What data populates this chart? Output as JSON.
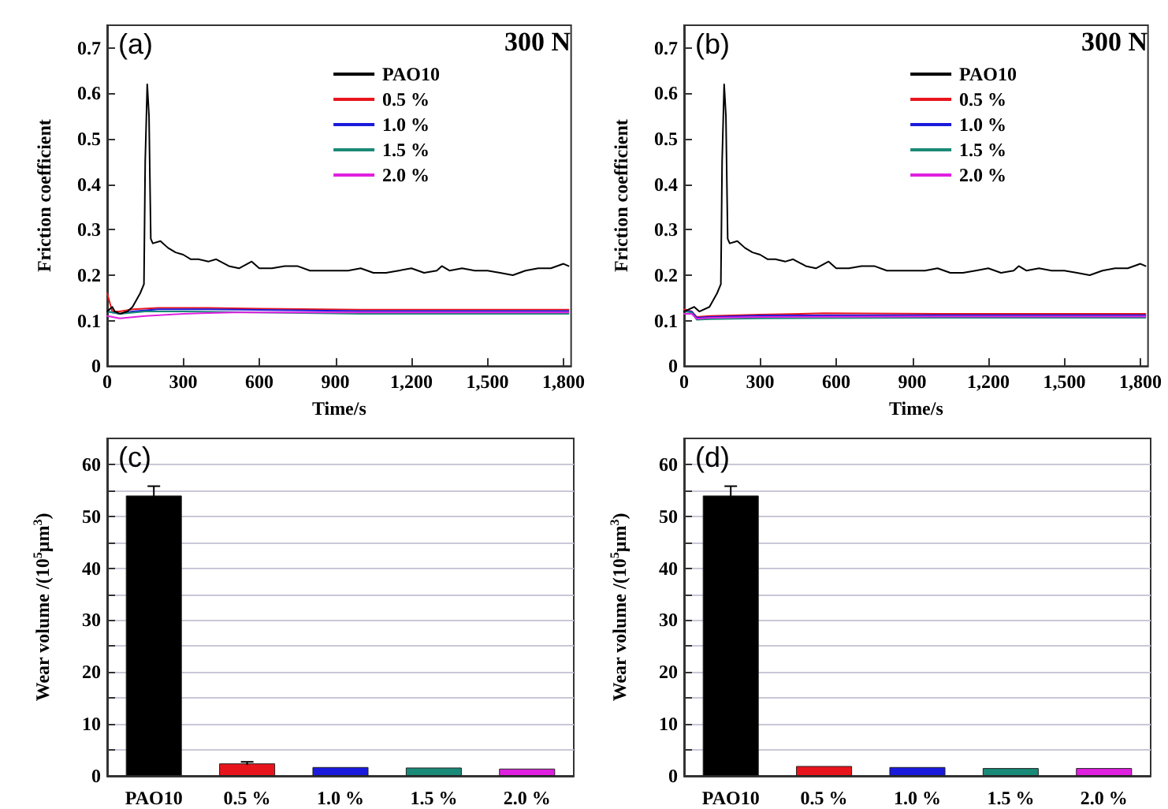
{
  "chart_data": [
    {
      "type": "line",
      "title": "(a)",
      "annotations": [
        "300 N"
      ],
      "xlabel": "Time/s",
      "ylabel": "Friction coefficient",
      "xlim": [
        0,
        1830
      ],
      "ylim": [
        0,
        0.75
      ],
      "xticks": [
        0,
        300,
        600,
        900,
        {
          "value": 1200,
          "label": "1,200"
        },
        {
          "value": 1500,
          "label": "1,500"
        },
        {
          "value": 1800,
          "label": "1,800"
        }
      ],
      "yticks": [
        0.0,
        0.1,
        0.2,
        0.3,
        0.4,
        0.5,
        0.6,
        0.7
      ],
      "legend": "top right",
      "grid": false,
      "marker": "none",
      "line_style": "solid",
      "series": [
        {
          "name": "PAO10",
          "color": "#000000",
          "x": [
            0,
            20,
            30,
            50,
            80,
            100,
            130,
            145,
            150,
            158,
            165,
            172,
            180,
            210,
            240,
            270,
            300,
            330,
            360,
            400,
            430,
            480,
            520,
            570,
            600,
            650,
            700,
            750,
            800,
            850,
            900,
            950,
            1000,
            1050,
            1100,
            1150,
            1200,
            1250,
            1300,
            1320,
            1350,
            1400,
            1450,
            1500,
            1550,
            1600,
            1650,
            1700,
            1750,
            1800,
            1820
          ],
          "values": [
            0.12,
            0.13,
            0.12,
            0.115,
            0.12,
            0.13,
            0.16,
            0.18,
            0.45,
            0.62,
            0.55,
            0.28,
            0.27,
            0.275,
            0.26,
            0.25,
            0.245,
            0.235,
            0.235,
            0.23,
            0.235,
            0.22,
            0.215,
            0.23,
            0.215,
            0.215,
            0.22,
            0.22,
            0.21,
            0.21,
            0.21,
            0.21,
            0.215,
            0.205,
            0.205,
            0.21,
            0.215,
            0.205,
            0.21,
            0.22,
            0.21,
            0.215,
            0.21,
            0.21,
            0.205,
            0.2,
            0.21,
            0.215,
            0.215,
            0.225,
            0.22
          ]
        },
        {
          "name": "0.5 %",
          "color": "#e8141c",
          "x": [
            0,
            20,
            50,
            100,
            200,
            400,
            600,
            1000,
            1820
          ],
          "values": [
            0.16,
            0.12,
            0.12,
            0.125,
            0.128,
            0.128,
            0.126,
            0.124,
            0.124
          ]
        },
        {
          "name": "1.0 %",
          "color": "#1a1adc",
          "x": [
            0,
            50,
            100,
            200,
            400,
            1000,
            1820
          ],
          "values": [
            0.12,
            0.115,
            0.12,
            0.125,
            0.125,
            0.121,
            0.121
          ]
        },
        {
          "name": "1.5 %",
          "color": "#1a8a78",
          "x": [
            0,
            50,
            150,
            300,
            1000,
            1820
          ],
          "values": [
            0.12,
            0.115,
            0.12,
            0.12,
            0.115,
            0.115
          ]
        },
        {
          "name": "2.0 %",
          "color": "#e020e0",
          "x": [
            0,
            50,
            150,
            300,
            500,
            1000,
            1820
          ],
          "values": [
            0.11,
            0.105,
            0.11,
            0.115,
            0.118,
            0.118,
            0.118
          ]
        }
      ]
    },
    {
      "type": "line",
      "title": "(b)",
      "annotations": [
        "300 N"
      ],
      "xlabel": "Time/s",
      "ylabel": "Friction coefficient",
      "xlim": [
        0,
        1830
      ],
      "ylim": [
        0,
        0.75
      ],
      "xticks": [
        0,
        300,
        600,
        900,
        {
          "value": 1200,
          "label": "1,200"
        },
        {
          "value": 1500,
          "label": "1,500"
        },
        {
          "value": 1800,
          "label": "1,800"
        }
      ],
      "yticks": [
        0.0,
        0.1,
        0.2,
        0.3,
        0.4,
        0.5,
        0.6,
        0.7
      ],
      "legend": "top right",
      "grid": false,
      "marker": "none",
      "line_style": "solid",
      "series": [
        {
          "name": "PAO10",
          "color": "#000000",
          "x": [
            0,
            20,
            40,
            60,
            100,
            130,
            145,
            150,
            158,
            165,
            172,
            180,
            210,
            240,
            270,
            300,
            330,
            360,
            400,
            430,
            480,
            520,
            570,
            600,
            650,
            700,
            750,
            800,
            850,
            900,
            950,
            1000,
            1050,
            1100,
            1150,
            1200,
            1250,
            1300,
            1320,
            1350,
            1400,
            1450,
            1500,
            1550,
            1600,
            1650,
            1700,
            1750,
            1800,
            1820
          ],
          "values": [
            0.12,
            0.125,
            0.13,
            0.12,
            0.13,
            0.16,
            0.18,
            0.45,
            0.62,
            0.55,
            0.28,
            0.27,
            0.275,
            0.26,
            0.25,
            0.245,
            0.235,
            0.235,
            0.23,
            0.235,
            0.22,
            0.215,
            0.23,
            0.215,
            0.215,
            0.22,
            0.22,
            0.21,
            0.21,
            0.21,
            0.21,
            0.215,
            0.205,
            0.205,
            0.21,
            0.215,
            0.205,
            0.21,
            0.22,
            0.21,
            0.215,
            0.21,
            0.21,
            0.205,
            0.2,
            0.21,
            0.215,
            0.215,
            0.225,
            0.22
          ]
        },
        {
          "name": "0.5 %",
          "color": "#e8141c",
          "x": [
            0,
            30,
            50,
            100,
            300,
            550,
            1000,
            1820
          ],
          "values": [
            0.125,
            0.12,
            0.108,
            0.11,
            0.113,
            0.116,
            0.115,
            0.115
          ]
        },
        {
          "name": "1.0 %",
          "color": "#1a1adc",
          "x": [
            0,
            30,
            50,
            100,
            300,
            1000,
            1820
          ],
          "values": [
            0.12,
            0.12,
            0.106,
            0.108,
            0.111,
            0.112,
            0.112
          ]
        },
        {
          "name": "1.5 %",
          "color": "#1a8a78",
          "x": [
            0,
            30,
            50,
            100,
            300,
            1000,
            1820
          ],
          "values": [
            0.12,
            0.118,
            0.102,
            0.103,
            0.105,
            0.106,
            0.106
          ]
        },
        {
          "name": "2.0 %",
          "color": "#e020e0",
          "x": [
            0,
            30,
            50,
            100,
            300,
            1000,
            1820
          ],
          "values": [
            0.115,
            0.115,
            0.104,
            0.106,
            0.108,
            0.109,
            0.109
          ]
        }
      ]
    },
    {
      "type": "bar",
      "title": "(c)",
      "ylabel": "Wear volume /(10$^{5}$μm$^{3}$)",
      "categories": [
        "PAO10",
        "0.5 %",
        "1.0 %",
        "1.5 %",
        "2.0 %"
      ],
      "values": [
        54,
        2.4,
        1.7,
        1.6,
        1.4
      ],
      "errors": [
        1.8,
        0.3,
        null,
        null,
        null
      ],
      "colors": [
        "#000000",
        "#e8141c",
        "#1a1adc",
        "#1a8a78",
        "#e020e0"
      ],
      "ylim": [
        0,
        65
      ],
      "yticks": [
        0,
        {
          "value": 5,
          "label": null
        },
        10,
        {
          "value": 15,
          "label": null
        },
        20,
        {
          "value": 25,
          "label": null
        },
        30,
        {
          "value": 35,
          "label": null
        },
        40,
        {
          "value": 45,
          "label": null
        },
        50,
        {
          "value": 55,
          "label": null
        },
        60
      ],
      "grid": "y"
    },
    {
      "type": "bar",
      "title": "(d)",
      "ylabel": "Wear volume /(10$^{5}$μm$^{3}$)",
      "categories": [
        "PAO10",
        "0.5 %",
        "1.0 %",
        "1.5 %",
        "2.0 %"
      ],
      "values": [
        54,
        1.9,
        1.7,
        1.5,
        1.5
      ],
      "errors": [
        1.8,
        null,
        null,
        null,
        null
      ],
      "colors": [
        "#000000",
        "#e8141c",
        "#1a1adc",
        "#1a8a78",
        "#e020e0"
      ],
      "ylim": [
        0,
        65
      ],
      "yticks": [
        0,
        {
          "value": 5,
          "label": null
        },
        10,
        {
          "value": 15,
          "label": null
        },
        20,
        {
          "value": 25,
          "label": null
        },
        30,
        {
          "value": 35,
          "label": null
        },
        40,
        {
          "value": 45,
          "label": null
        },
        50,
        {
          "value": 55,
          "label": null
        },
        60
      ],
      "grid": "y"
    }
  ]
}
